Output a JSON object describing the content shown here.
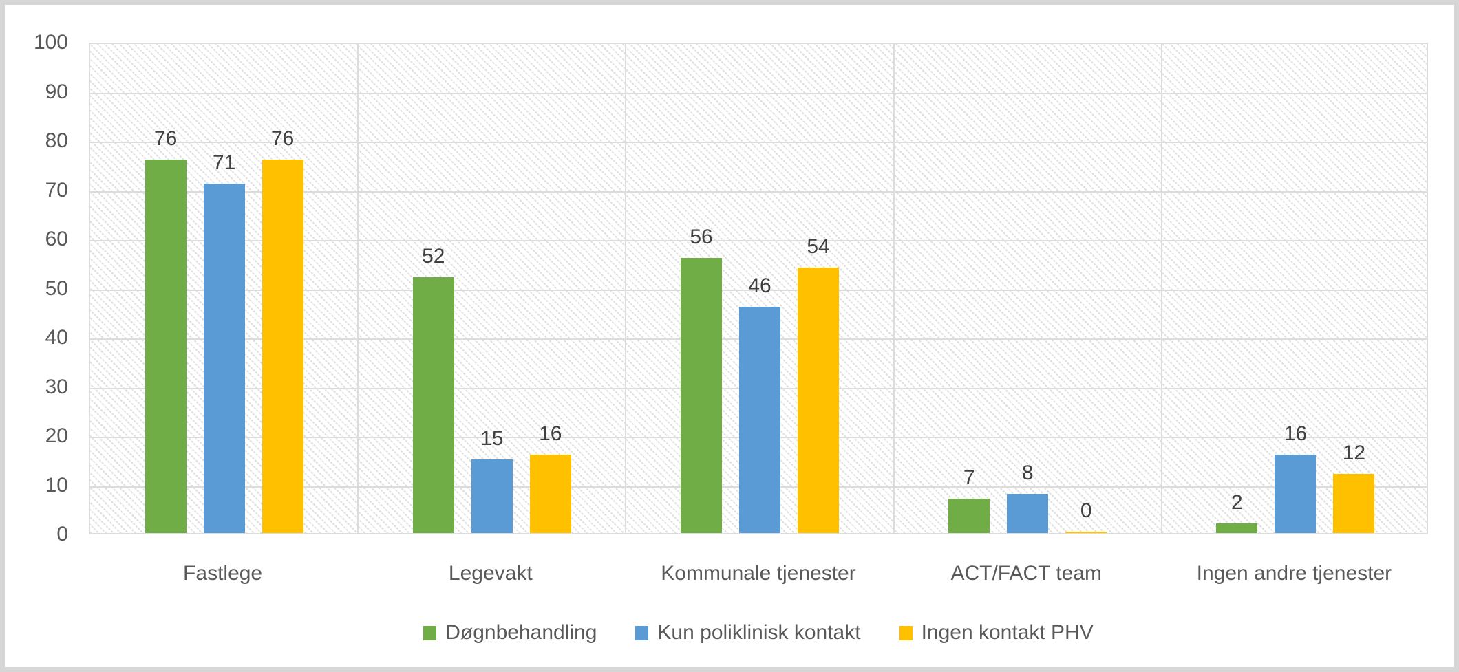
{
  "chart_data": {
    "type": "bar",
    "categories": [
      "Fastlege",
      "Legevakt",
      "Kommunale tjenester",
      "ACT/FACT team",
      "Ingen andre tjenester"
    ],
    "series": [
      {
        "name": "Døgnbehandling",
        "color": "#70AD47",
        "values": [
          76,
          52,
          56,
          7,
          2
        ]
      },
      {
        "name": "Kun poliklinisk kontakt",
        "color": "#5B9BD5",
        "values": [
          71,
          15,
          46,
          8,
          16
        ]
      },
      {
        "name": "Ingen kontakt PHV",
        "color": "#FFC000",
        "values": [
          76,
          16,
          54,
          0,
          12
        ]
      }
    ],
    "title": "",
    "xlabel": "",
    "ylabel": "",
    "ylim": [
      0,
      100
    ],
    "y_ticks": [
      0,
      10,
      20,
      30,
      40,
      50,
      60,
      70,
      80,
      90,
      100
    ],
    "grid": "horizontal major gridlines + vertical category separators, hatched plot background",
    "legend_position": "bottom-center",
    "data_labels": true
  },
  "colors": {
    "series_green": "#70AD47",
    "series_blue": "#5B9BD5",
    "series_yellow": "#FFC000",
    "gridline": "#DCDCDC",
    "axis_text": "#595959",
    "data_label_text": "#404040",
    "frame_border": "#D6D6D6",
    "background": "#FFFFFF"
  }
}
